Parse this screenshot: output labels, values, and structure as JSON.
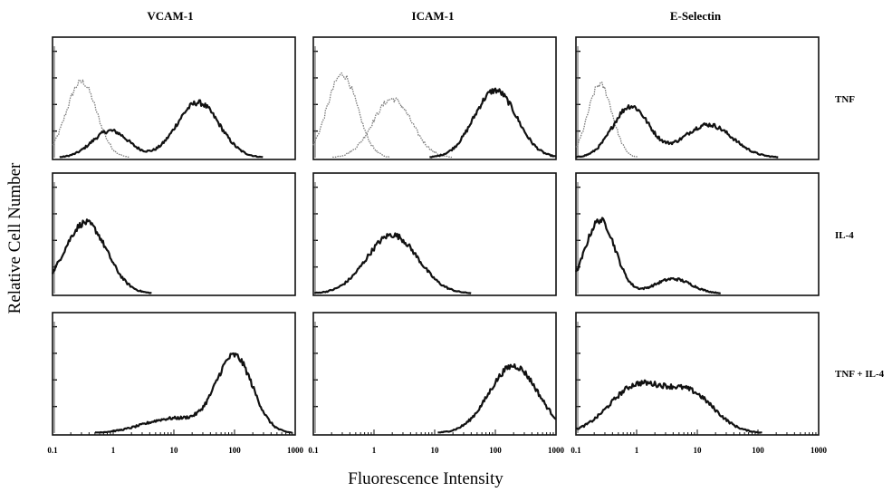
{
  "figure": {
    "ylabel": "Relative Cell Number",
    "xlabel": "Fluorescence Intensity",
    "column_titles": [
      "VCAM-1",
      "ICAM-1",
      "E-Selectin"
    ],
    "row_labels": [
      "TNF",
      "IL-4",
      "TNF + IL-4"
    ],
    "x_tick_labels": [
      "0.1",
      "1",
      "10",
      "100",
      "1000"
    ]
  },
  "chart_data": [
    {
      "type": "area",
      "panel": "VCAM-1 / TNF",
      "x_scale": "log",
      "xlim": [
        0.1,
        1000
      ],
      "traces": [
        {
          "style": "control",
          "peaks": [
            {
              "x": 0.3,
              "height": 0.62,
              "width": 0.25
            }
          ]
        },
        {
          "style": "treated",
          "peaks": [
            {
              "x": 0.9,
              "height": 0.22,
              "width": 0.3
            },
            {
              "x": 25,
              "height": 0.45,
              "width": 0.35
            }
          ]
        }
      ]
    },
    {
      "type": "area",
      "panel": "ICAM-1 / TNF",
      "x_scale": "log",
      "xlim": [
        0.1,
        1000
      ],
      "traces": [
        {
          "style": "control",
          "peaks": [
            {
              "x": 0.3,
              "height": 0.68,
              "width": 0.25
            }
          ]
        },
        {
          "style": "control",
          "peaks": [
            {
              "x": 2,
              "height": 0.48,
              "width": 0.32
            }
          ]
        },
        {
          "style": "treated",
          "peaks": [
            {
              "x": 100,
              "height": 0.55,
              "width": 0.35
            }
          ]
        }
      ]
    },
    {
      "type": "area",
      "panel": "E-Selectin / TNF",
      "x_scale": "log",
      "xlim": [
        0.1,
        1000
      ],
      "traces": [
        {
          "style": "control",
          "peaks": [
            {
              "x": 0.25,
              "height": 0.6,
              "width": 0.2
            }
          ]
        },
        {
          "style": "treated",
          "peaks": [
            {
              "x": 0.8,
              "height": 0.42,
              "width": 0.3
            },
            {
              "x": 15,
              "height": 0.27,
              "width": 0.4
            }
          ]
        }
      ]
    },
    {
      "type": "area",
      "panel": "VCAM-1 / IL-4",
      "x_scale": "log",
      "xlim": [
        0.1,
        1000
      ],
      "traces": [
        {
          "style": "treated",
          "peaks": [
            {
              "x": 0.35,
              "height": 0.58,
              "width": 0.35
            }
          ]
        }
      ]
    },
    {
      "type": "area",
      "panel": "ICAM-1 / IL-4",
      "x_scale": "log",
      "xlim": [
        0.1,
        1000
      ],
      "traces": [
        {
          "style": "treated",
          "peaks": [
            {
              "x": 2,
              "height": 0.48,
              "width": 0.42
            }
          ]
        }
      ]
    },
    {
      "type": "area",
      "panel": "E-Selectin / IL-4",
      "x_scale": "log",
      "xlim": [
        0.1,
        1000
      ],
      "traces": [
        {
          "style": "treated",
          "peaks": [
            {
              "x": 0.25,
              "height": 0.6,
              "width": 0.25
            },
            {
              "x": 4,
              "height": 0.12,
              "width": 0.3
            }
          ]
        }
      ]
    },
    {
      "type": "area",
      "panel": "VCAM-1 / TNF + IL-4",
      "x_scale": "log",
      "xlim": [
        0.1,
        1000
      ],
      "traces": [
        {
          "style": "treated",
          "peaks": [
            {
              "x": 100,
              "height": 0.62,
              "width": 0.3
            },
            {
              "x": 10,
              "height": 0.12,
              "width": 0.5
            }
          ]
        }
      ]
    },
    {
      "type": "area",
      "panel": "ICAM-1 / TNF + IL-4",
      "x_scale": "log",
      "xlim": [
        0.1,
        1000
      ],
      "traces": [
        {
          "style": "treated",
          "peaks": [
            {
              "x": 200,
              "height": 0.55,
              "width": 0.4
            }
          ]
        }
      ]
    },
    {
      "type": "area",
      "panel": "E-Selectin / TNF + IL-4",
      "x_scale": "log",
      "xlim": [
        0.1,
        1000
      ],
      "traces": [
        {
          "style": "treated",
          "peaks": [
            {
              "x": 1,
              "height": 0.38,
              "width": 0.45
            },
            {
              "x": 8,
              "height": 0.3,
              "width": 0.4
            }
          ]
        }
      ]
    }
  ]
}
